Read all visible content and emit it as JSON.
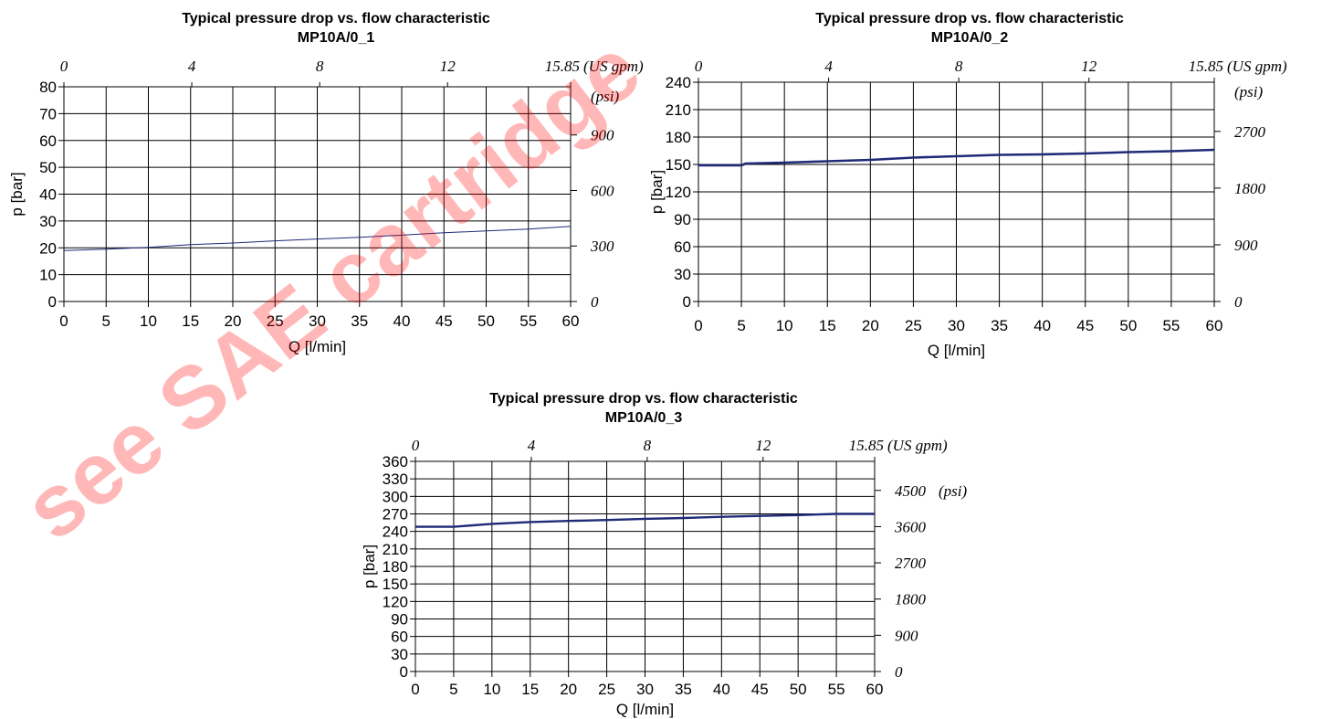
{
  "watermark": "see SAE cartridge",
  "colors": {
    "line": "#1f2a78",
    "watermark": "#ff0000"
  },
  "chart_data": [
    {
      "type": "line",
      "title": "Typical pressure drop vs. flow characteristic",
      "subtitle": "MP10A/0_1",
      "xlabel": "Q [l/min]",
      "ylabel": "p [bar]",
      "xlim": [
        0,
        60
      ],
      "ylim": [
        0,
        80
      ],
      "xticks": [
        0,
        5,
        10,
        15,
        20,
        25,
        30,
        35,
        40,
        45,
        50,
        55,
        60
      ],
      "yticks": [
        0,
        10,
        20,
        30,
        40,
        50,
        60,
        70,
        80
      ],
      "x2_ticks": [
        0,
        4,
        8,
        12,
        15.85
      ],
      "x2_tick_labels": [
        "0",
        "4",
        "8",
        "12",
        "15.85"
      ],
      "x2_unit": "(US gpm)",
      "y2_ticks": [
        0,
        300,
        600,
        900
      ],
      "y2_tick_labels": [
        "0",
        "300",
        "600",
        "900"
      ],
      "y2_unit": "(psi)",
      "grid": true,
      "line_width": 1,
      "series": [
        {
          "x": [
            0,
            5,
            10,
            15,
            20,
            25,
            30,
            35,
            40,
            45,
            50,
            55,
            60
          ],
          "y": [
            19,
            19.5,
            20.2,
            21.2,
            21.8,
            22.6,
            23.3,
            23.9,
            24.7,
            25.6,
            26.3,
            27,
            28
          ]
        }
      ]
    },
    {
      "type": "line",
      "title": "Typical pressure drop vs. flow characteristic",
      "subtitle": "MP10A/0_2",
      "xlabel": "Q [l/min]",
      "ylabel": "p [bar]",
      "xlim": [
        0,
        60
      ],
      "ylim": [
        0,
        240
      ],
      "xticks": [
        0,
        5,
        10,
        15,
        20,
        25,
        30,
        35,
        40,
        45,
        50,
        55,
        60
      ],
      "yticks": [
        0,
        30,
        60,
        90,
        120,
        150,
        180,
        210,
        240
      ],
      "x2_ticks": [
        0,
        4,
        8,
        12,
        15.85
      ],
      "x2_tick_labels": [
        "0",
        "4",
        "8",
        "12",
        "15.85"
      ],
      "x2_unit": "(US gpm)",
      "y2_ticks": [
        0,
        900,
        1800,
        2700
      ],
      "y2_tick_labels": [
        "0",
        "900",
        "1800",
        "2700"
      ],
      "y2_unit": "(psi)",
      "grid": true,
      "line_width": 2.6,
      "series": [
        {
          "x": [
            0,
            5,
            5.5,
            10,
            15,
            20,
            25,
            30,
            35,
            40,
            45,
            50,
            55,
            60
          ],
          "y": [
            149,
            149,
            151,
            152,
            153.5,
            155,
            157.5,
            159,
            160.5,
            161,
            162,
            163.5,
            164.5,
            166
          ]
        }
      ]
    },
    {
      "type": "line",
      "title": "Typical pressure drop vs. flow characteristic",
      "subtitle": "MP10A/0_3",
      "xlabel": "Q [l/min]",
      "ylabel": "p [bar]",
      "xlim": [
        0,
        60
      ],
      "ylim": [
        0,
        360
      ],
      "xticks": [
        0,
        5,
        10,
        15,
        20,
        25,
        30,
        35,
        40,
        45,
        50,
        55,
        60
      ],
      "yticks": [
        0,
        30,
        60,
        90,
        120,
        150,
        180,
        210,
        240,
        270,
        300,
        330,
        360
      ],
      "x2_ticks": [
        0,
        4,
        8,
        12,
        15.85
      ],
      "x2_tick_labels": [
        "0",
        "4",
        "8",
        "12",
        "15.85"
      ],
      "x2_unit": "(US gpm)",
      "y2_ticks": [
        0,
        900,
        1800,
        2700,
        3600,
        4500
      ],
      "y2_tick_labels": [
        "0",
        "900",
        "1800",
        "2700",
        "3600",
        "4500"
      ],
      "y2_unit": "(psi)",
      "grid": true,
      "line_width": 2.4,
      "series": [
        {
          "x": [
            0,
            5,
            10,
            15,
            20,
            25,
            30,
            35,
            40,
            45,
            50,
            55,
            60
          ],
          "y": [
            248,
            248,
            253,
            256,
            258,
            259.5,
            261.5,
            263,
            265,
            266.5,
            268,
            270,
            270
          ]
        }
      ]
    }
  ]
}
